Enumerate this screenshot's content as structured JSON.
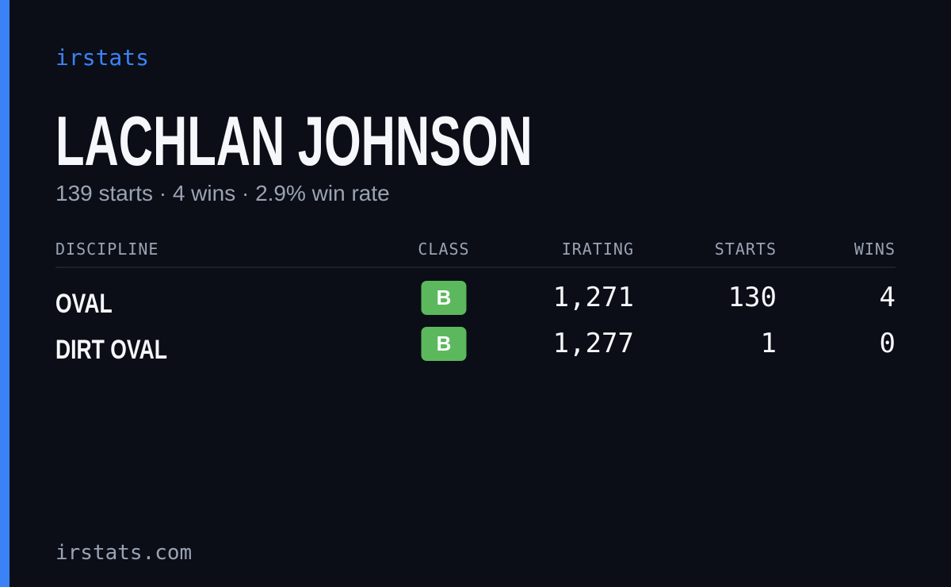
{
  "brand": "irstats",
  "driver": {
    "name": "LACHLAN JOHNSON",
    "summary": "139 starts · 4 wins · 2.9% win rate"
  },
  "table": {
    "headers": [
      "DISCIPLINE",
      "CLASS",
      "IRATING",
      "STARTS",
      "WINS"
    ],
    "rows": [
      [
        "OVAL",
        "B",
        "1,271",
        "130",
        "4"
      ],
      [
        "DIRT OVAL",
        "B",
        "1,277",
        "1",
        "0"
      ]
    ]
  },
  "footer": "irstats.com"
}
